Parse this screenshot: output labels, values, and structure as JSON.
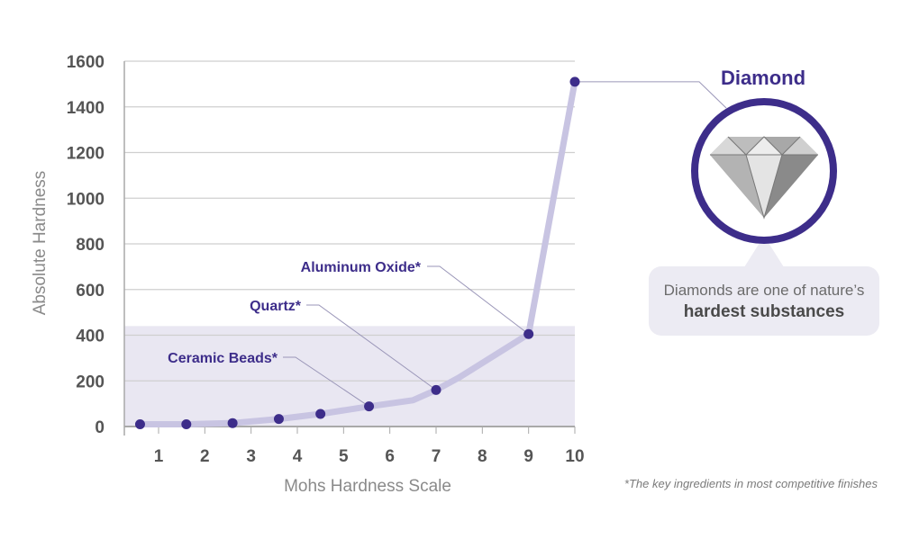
{
  "chart_data": {
    "type": "line",
    "xlabel": "Mohs Hardness Scale",
    "ylabel": "Absolute Hardness",
    "ylim": [
      0,
      1600
    ],
    "xlim": [
      0.5,
      10
    ],
    "x_ticks": [
      "1",
      "2",
      "3",
      "4",
      "5",
      "6",
      "7",
      "8",
      "9",
      "10"
    ],
    "y_ticks": [
      "0",
      "200",
      "400",
      "600",
      "800",
      "1000",
      "1200",
      "1400",
      "1600"
    ],
    "grid": "horizontal",
    "highlight_band": [
      0,
      440
    ],
    "series": [
      {
        "x": [
          0.6,
          1.6,
          2.6,
          3.6,
          4.5,
          5.55,
          6.5,
          7.0,
          7.5,
          9.0,
          10.0
        ],
        "y": [
          10,
          10,
          15,
          33,
          55,
          88,
          115,
          160,
          215,
          405,
          1510
        ],
        "markers": [
          true,
          true,
          true,
          true,
          true,
          true,
          false,
          true,
          false,
          true,
          true
        ]
      }
    ],
    "annotations": [
      {
        "text": "Aluminum Oxide*",
        "x": 9.0,
        "y": 405
      },
      {
        "text": "Quartz*",
        "x": 7.0,
        "y": 160
      },
      {
        "text": "Ceramic Beads*",
        "x": 5.55,
        "y": 88
      },
      {
        "text": "Diamond",
        "x": 10.0,
        "y": 1510
      }
    ],
    "caption_line1": "Diamonds are one of nature’s",
    "caption_line2": "hardest substances",
    "footnote": "*The key ingredients in most competitive finishes"
  },
  "colors": {
    "line": "#c8c4e2",
    "marker": "#3d2d8a",
    "band": "#e9e7f2",
    "grid": "#cfcfcf",
    "accent": "#3d2d8a",
    "caption_bg": "#ecebf3"
  }
}
